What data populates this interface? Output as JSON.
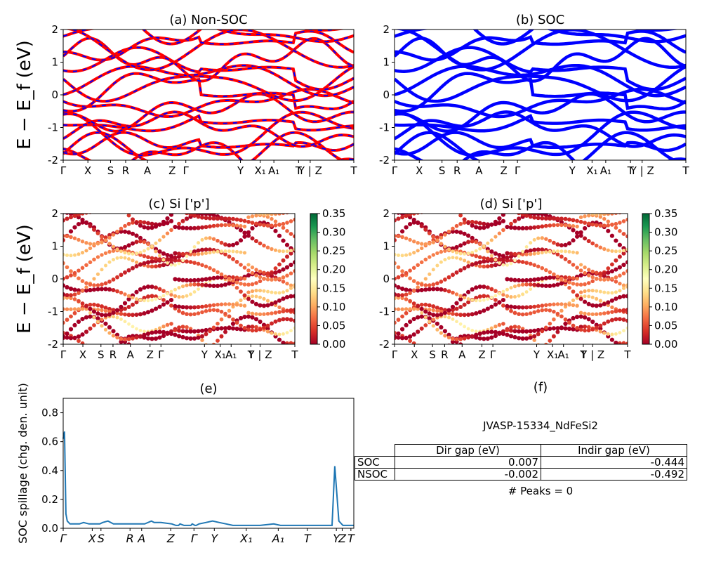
{
  "panels": {
    "a": {
      "title": "(a) Non-SOC"
    },
    "b": {
      "title": "(b) SOC"
    },
    "c": {
      "title": "(c)  Si ['p']"
    },
    "d": {
      "title": "(d) Si ['p']"
    },
    "e": {
      "title": "(e)"
    },
    "f": {
      "title": "(f)"
    }
  },
  "band_axes": {
    "ylabel": "E − E_f (eV)",
    "ylim": [
      -2,
      2
    ],
    "yticks": [
      "-2",
      "-1",
      "0",
      "1",
      "2"
    ],
    "kpoint_labels": [
      "Γ",
      "X",
      "S",
      "R",
      "A",
      "Z",
      "Γ",
      "Y",
      "X₁",
      "A₁",
      "T",
      "Y | Z",
      "T"
    ]
  },
  "colorbar": {
    "ticks": [
      "0.35",
      "0.30",
      "0.25",
      "0.20",
      "0.15",
      "0.10",
      "0.05",
      "0.00"
    ],
    "range": [
      0.0,
      0.35
    ],
    "colormap": "RdYlGn"
  },
  "colors": {
    "nonsoc_line": "#ff0000",
    "nonsoc_dash": "#0000ff",
    "soc_line": "#0000ff",
    "spillage_line": "#1f77b4"
  },
  "chart_data": [
    {
      "panel": "e",
      "type": "line",
      "title": "(e)",
      "ylabel": "SOC spillage (chg. den. unit)",
      "ylim": [
        0.0,
        0.9
      ],
      "yticks": [
        "0.0",
        "0.2",
        "0.4",
        "0.6",
        "0.8"
      ],
      "xticks": [
        "Γ",
        "X",
        "S",
        "R",
        "A",
        "Z",
        "Γ",
        "Y",
        "X₁",
        "A₁",
        "T",
        "Y",
        "Z",
        "T"
      ],
      "x": [
        0,
        1,
        2,
        3,
        5,
        8,
        12,
        15,
        19,
        22,
        23,
        27,
        29,
        33,
        37,
        38,
        40,
        45,
        50,
        60,
        65,
        67,
        72,
        80,
        83,
        85,
        86,
        89,
        92,
        94,
        95,
        97,
        98,
        100,
        105,
        110,
        115,
        120,
        125,
        130,
        135,
        140,
        145,
        155,
        160,
        165,
        170,
        175,
        180,
        185,
        190,
        193,
        195,
        196,
        198,
        200,
        203,
        206,
        210,
        214
      ],
      "values": [
        0.62,
        0.67,
        0.1,
        0.05,
        0.03,
        0.03,
        0.03,
        0.04,
        0.03,
        0.03,
        0.03,
        0.03,
        0.04,
        0.05,
        0.03,
        0.03,
        0.03,
        0.03,
        0.03,
        0.03,
        0.05,
        0.04,
        0.04,
        0.03,
        0.02,
        0.02,
        0.03,
        0.02,
        0.02,
        0.02,
        0.03,
        0.02,
        0.02,
        0.03,
        0.04,
        0.05,
        0.04,
        0.03,
        0.02,
        0.02,
        0.02,
        0.02,
        0.02,
        0.03,
        0.02,
        0.02,
        0.02,
        0.02,
        0.02,
        0.02,
        0.02,
        0.02,
        0.02,
        0.02,
        0.02,
        0.43,
        0.05,
        0.02,
        0.02,
        0.02
      ]
    }
  ],
  "table": {
    "title": "JVASP-15334_NdFeSi2",
    "headers": [
      "",
      "Dir gap (eV)",
      "Indir gap (eV)"
    ],
    "rows": [
      [
        "SOC",
        "0.007",
        "-0.444"
      ],
      [
        "NSOC",
        "-0.002",
        "-0.492"
      ]
    ],
    "peaks": "# Peaks = 0"
  }
}
